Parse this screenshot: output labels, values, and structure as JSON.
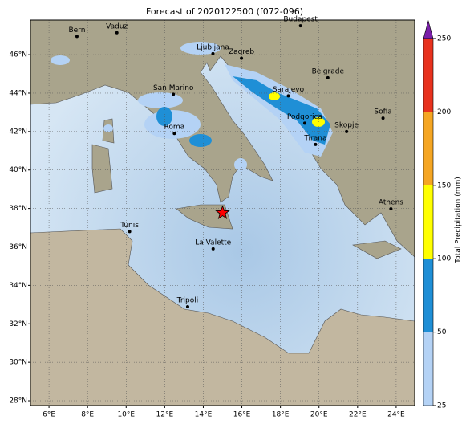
{
  "chart_data": {
    "type": "map",
    "title": "Forecast of 2020122500 (f072-096)",
    "xlim": [
      5.04,
      24.96
    ],
    "ylim": [
      27.75,
      47.8
    ],
    "xticks": [
      {
        "value": 6,
        "label": "6°E"
      },
      {
        "value": 8,
        "label": "8°E"
      },
      {
        "value": 10,
        "label": "10°E"
      },
      {
        "value": 12,
        "label": "12°E"
      },
      {
        "value": 14,
        "label": "14°E"
      },
      {
        "value": 16,
        "label": "16°E"
      },
      {
        "value": 18,
        "label": "18°E"
      },
      {
        "value": 20,
        "label": "20°E"
      },
      {
        "value": 22,
        "label": "22°E"
      },
      {
        "value": 24,
        "label": "24°E"
      }
    ],
    "yticks": [
      {
        "value": 28,
        "label": "28°N"
      },
      {
        "value": 30,
        "label": "30°N"
      },
      {
        "value": 32,
        "label": "32°N"
      },
      {
        "value": 34,
        "label": "34°N"
      },
      {
        "value": 36,
        "label": "36°N"
      },
      {
        "value": 38,
        "label": "38°N"
      },
      {
        "value": 40,
        "label": "40°N"
      },
      {
        "value": 42,
        "label": "42°N"
      },
      {
        "value": 44,
        "label": "44°N"
      },
      {
        "value": 46,
        "label": "46°N"
      }
    ],
    "grid": true,
    "cities": [
      {
        "name": "Bern",
        "lon": 7.45,
        "lat": 46.95
      },
      {
        "name": "Vaduz",
        "lon": 9.52,
        "lat": 47.14
      },
      {
        "name": "Budapest",
        "lon": 19.04,
        "lat": 47.5
      },
      {
        "name": "Ljubljana",
        "lon": 14.5,
        "lat": 46.05
      },
      {
        "name": "Zagreb",
        "lon": 15.98,
        "lat": 45.81
      },
      {
        "name": "Belgrade",
        "lon": 20.46,
        "lat": 44.8
      },
      {
        "name": "San Marino",
        "lon": 12.45,
        "lat": 43.94
      },
      {
        "name": "Sarajevo",
        "lon": 18.41,
        "lat": 43.86
      },
      {
        "name": "Sofia",
        "lon": 23.32,
        "lat": 42.7
      },
      {
        "name": "Podgorica",
        "lon": 19.26,
        "lat": 42.44
      },
      {
        "name": "Skopje",
        "lon": 21.43,
        "lat": 42.0
      },
      {
        "name": "Roma",
        "lon": 12.5,
        "lat": 41.9
      },
      {
        "name": "Tirana",
        "lon": 19.82,
        "lat": 41.33
      },
      {
        "name": "Athens",
        "lon": 23.73,
        "lat": 37.98
      },
      {
        "name": "Tunis",
        "lon": 10.18,
        "lat": 36.8
      },
      {
        "name": "La Valette",
        "lon": 14.51,
        "lat": 35.9
      },
      {
        "name": "Tripoli",
        "lon": 13.19,
        "lat": 32.89
      }
    ],
    "marker": {
      "lon": 15.0,
      "lat": 37.77,
      "color": "#ff0000"
    },
    "colorbar": {
      "label": "Total Precipitation (mm)",
      "ticks": [
        25,
        50,
        100,
        150,
        200,
        250
      ],
      "colors": [
        "#b4d2f5",
        "#1f8fd6",
        "#ffff00",
        "#f5a623",
        "#e8321e"
      ],
      "extend_color": "#7a1fa8"
    }
  }
}
